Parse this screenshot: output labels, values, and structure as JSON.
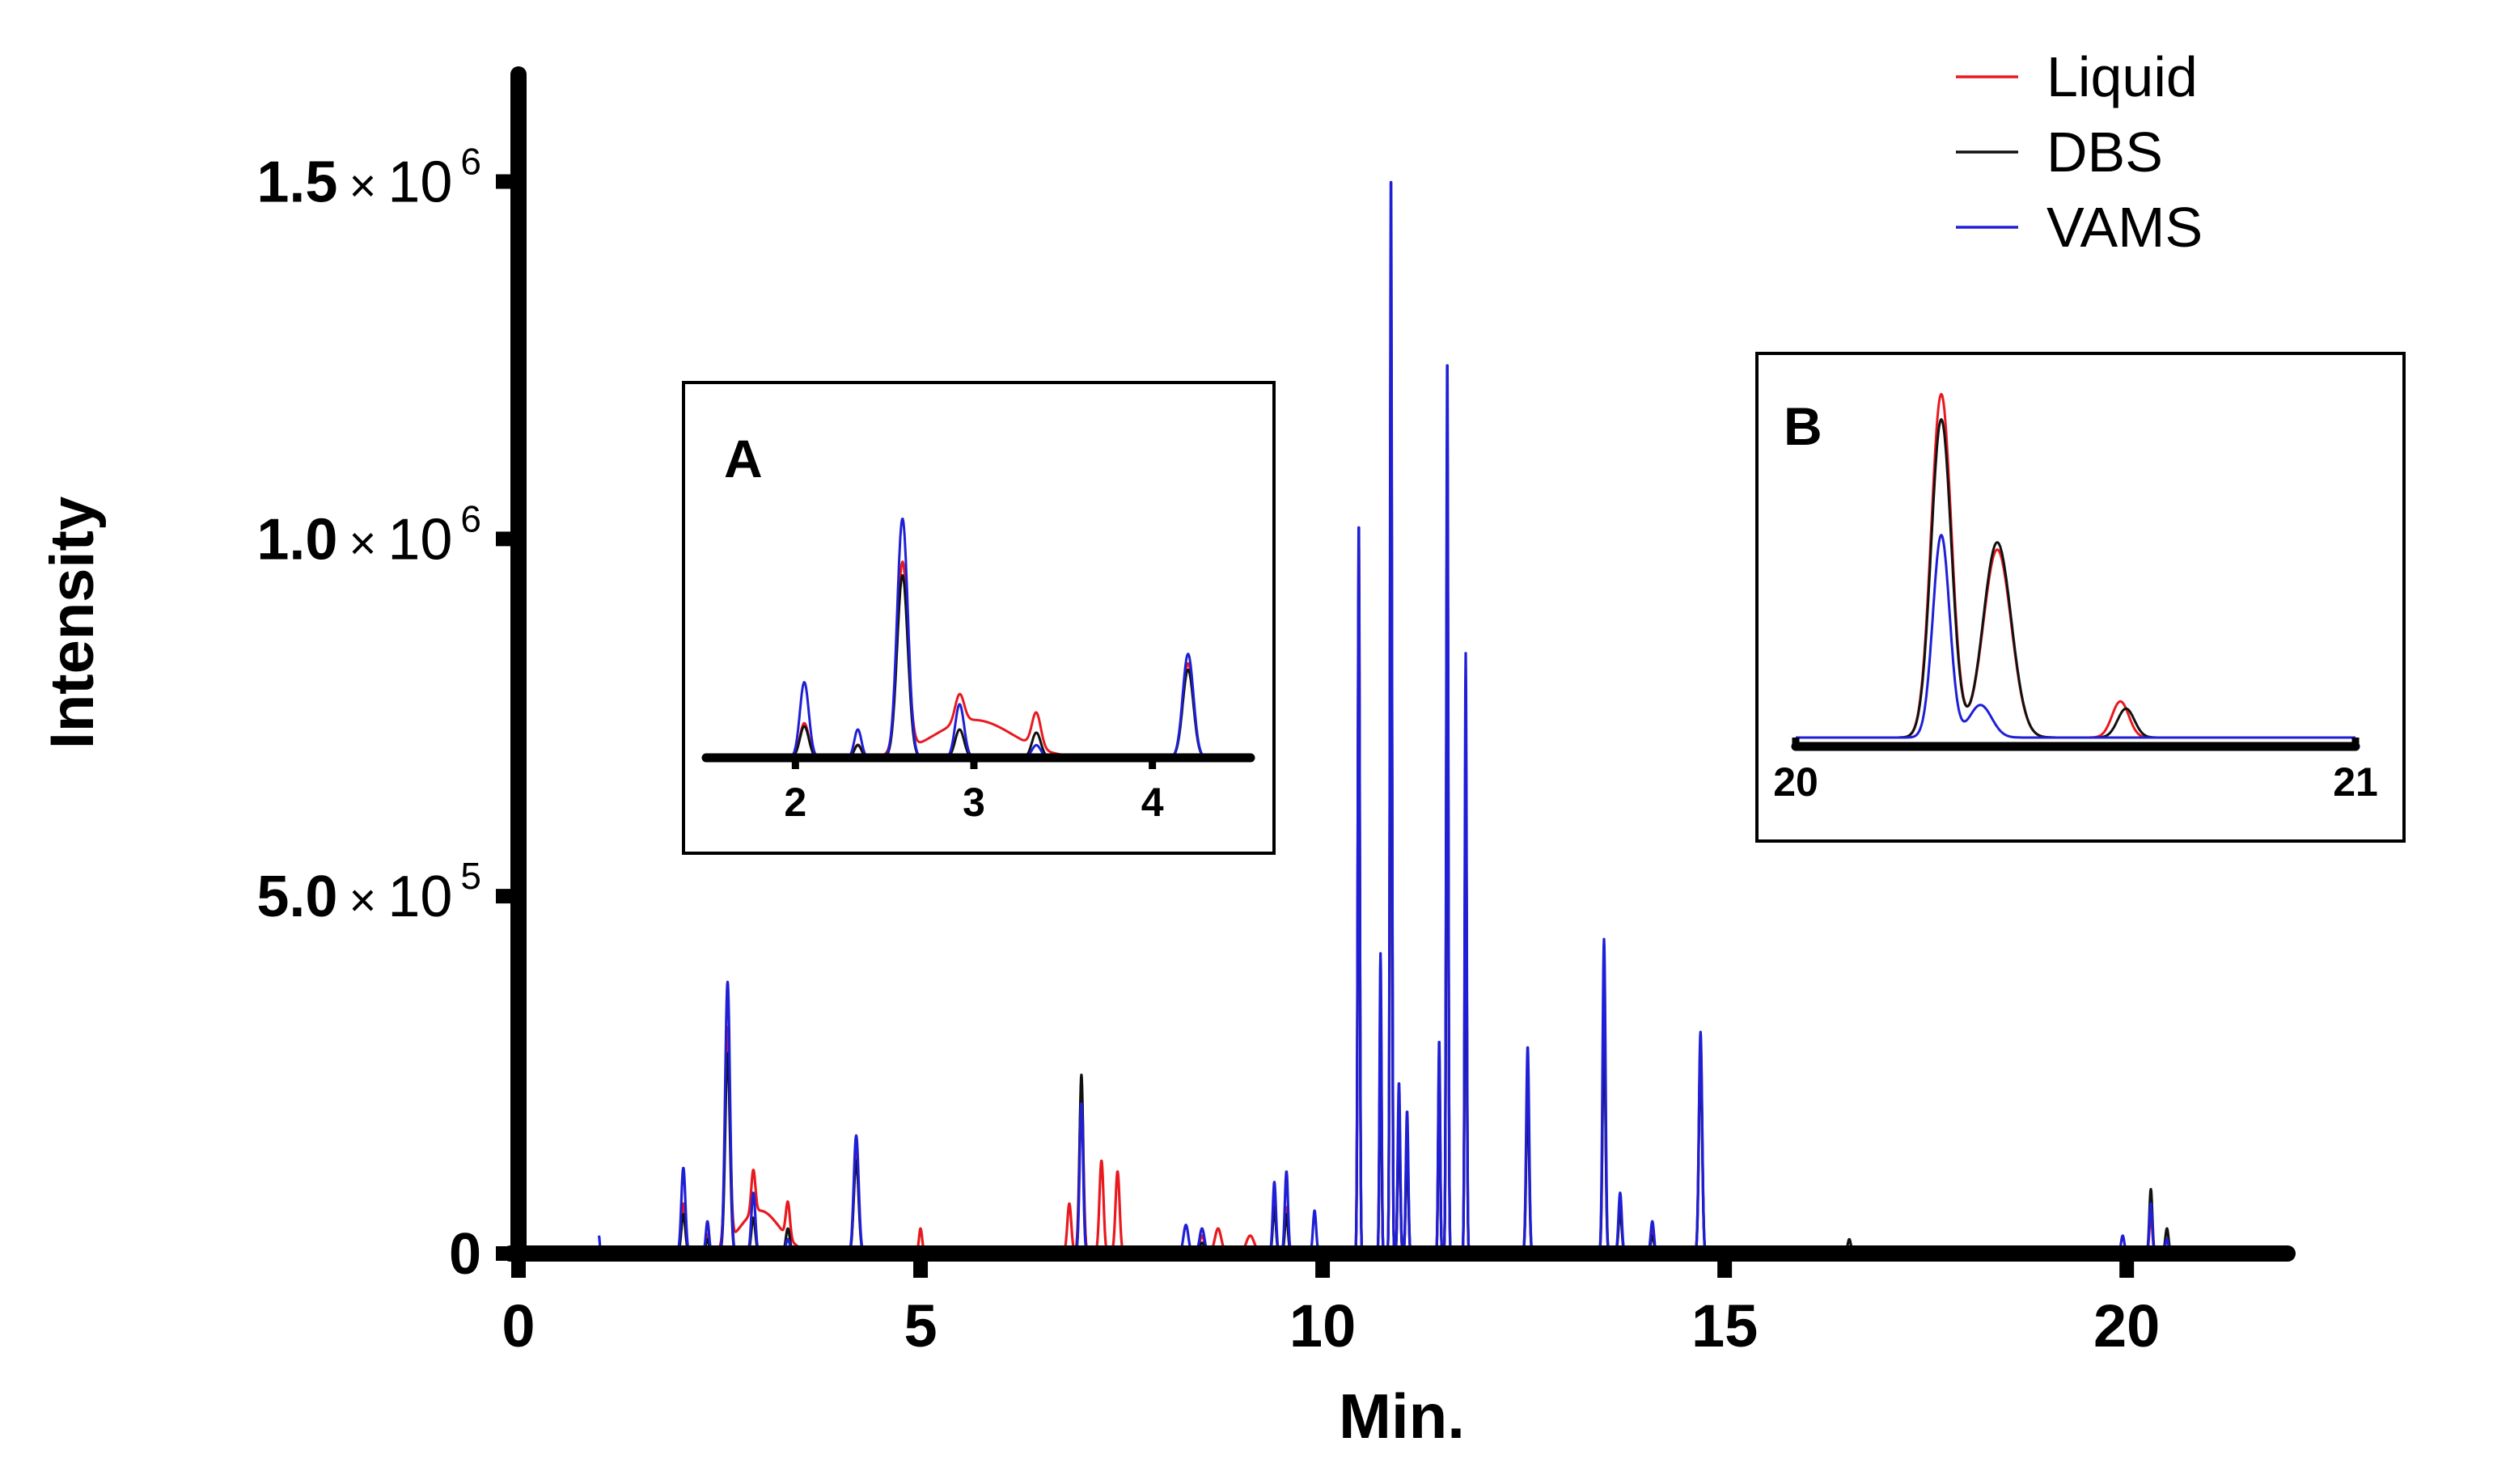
{
  "chart_data": {
    "type": "line",
    "xlabel": "Min.",
    "ylabel": "Intensity",
    "xlim": [
      0,
      22
    ],
    "ylim": [
      0,
      1650000
    ],
    "x_ticks": [
      {
        "value": 0,
        "label": "0"
      },
      {
        "value": 5,
        "label": "5"
      },
      {
        "value": 10,
        "label": "10"
      },
      {
        "value": 15,
        "label": "15"
      },
      {
        "value": 20,
        "label": "20"
      }
    ],
    "y_ticks": [
      {
        "value": 0,
        "mantissa": "0",
        "times": "",
        "base": "",
        "exp": ""
      },
      {
        "value": 500000,
        "mantissa": "5.0",
        "times": "×",
        "base": "10",
        "exp": "5"
      },
      {
        "value": 1000000,
        "mantissa": "1.0",
        "times": "×",
        "base": "10",
        "exp": "6"
      },
      {
        "value": 1500000,
        "mantissa": "1.5",
        "times": "×",
        "base": "10",
        "exp": "6"
      }
    ],
    "legend": {
      "position": "top-right",
      "entries": [
        {
          "name": "Liquid",
          "color": "#e8191f"
        },
        {
          "name": "DBS",
          "color": "#111111"
        },
        {
          "name": "VAMS",
          "color": "#1f1fd6"
        }
      ]
    },
    "series": [
      {
        "name": "Liquid",
        "color": "#e8191f",
        "baseline_start": 1.0,
        "baseline_end": 20.7,
        "peaks": [
          [
            2.05,
            70000,
            0.025
          ],
          [
            2.35,
            25000,
            0.02
          ],
          [
            2.6,
            300000,
            0.03
          ],
          [
            2.92,
            60000,
            0.025
          ],
          [
            3.0,
            60000,
            0.25
          ],
          [
            3.35,
            50000,
            0.025
          ],
          [
            4.2,
            140000,
            0.03
          ],
          [
            5.0,
            35000,
            0.02
          ],
          [
            6.85,
            70000,
            0.025
          ],
          [
            7.0,
            230000,
            0.025
          ],
          [
            7.25,
            130000,
            0.025
          ],
          [
            7.45,
            115000,
            0.025
          ],
          [
            8.5,
            25000,
            0.03
          ],
          [
            8.7,
            35000,
            0.04
          ],
          [
            9.1,
            25000,
            0.05
          ],
          [
            9.4,
            75000,
            0.02
          ],
          [
            9.55,
            65000,
            0.02
          ],
          [
            10.45,
            1000000,
            0.012
          ],
          [
            10.72,
            370000,
            0.012
          ],
          [
            10.85,
            1380000,
            0.012
          ],
          [
            10.95,
            210000,
            0.015
          ],
          [
            11.05,
            180000,
            0.015
          ],
          [
            11.45,
            280000,
            0.012
          ],
          [
            11.55,
            1140000,
            0.012
          ],
          [
            11.78,
            730000,
            0.012
          ],
          [
            12.55,
            250000,
            0.018
          ],
          [
            13.5,
            350000,
            0.018
          ],
          [
            13.7,
            65000,
            0.02
          ],
          [
            14.1,
            30000,
            0.02
          ],
          [
            14.7,
            300000,
            0.02
          ],
          [
            20.3,
            55000,
            0.018
          ],
          [
            20.5,
            20000,
            0.02
          ]
        ]
      },
      {
        "name": "DBS",
        "color": "#111111",
        "baseline_start": 1.0,
        "baseline_end": 20.7,
        "peaks": [
          [
            2.05,
            55000,
            0.025
          ],
          [
            2.35,
            20000,
            0.02
          ],
          [
            2.6,
            280000,
            0.03
          ],
          [
            2.92,
            50000,
            0.025
          ],
          [
            3.35,
            35000,
            0.025
          ],
          [
            4.2,
            130000,
            0.03
          ],
          [
            7.0,
            250000,
            0.022
          ],
          [
            8.5,
            15000,
            0.03
          ],
          [
            9.4,
            65000,
            0.02
          ],
          [
            9.55,
            55000,
            0.02
          ],
          [
            10.45,
            950000,
            0.012
          ],
          [
            10.72,
            340000,
            0.012
          ],
          [
            10.85,
            1350000,
            0.012
          ],
          [
            10.95,
            200000,
            0.015
          ],
          [
            11.05,
            160000,
            0.015
          ],
          [
            11.45,
            260000,
            0.012
          ],
          [
            11.55,
            1100000,
            0.012
          ],
          [
            11.78,
            700000,
            0.012
          ],
          [
            12.55,
            230000,
            0.018
          ],
          [
            13.5,
            330000,
            0.018
          ],
          [
            13.7,
            60000,
            0.02
          ],
          [
            14.1,
            25000,
            0.02
          ],
          [
            14.7,
            280000,
            0.02
          ],
          [
            15.05,
            8000,
            0.02
          ],
          [
            16.55,
            20000,
            0.02
          ],
          [
            20.3,
            90000,
            0.018
          ],
          [
            20.5,
            35000,
            0.02
          ]
        ]
      },
      {
        "name": "VAMS",
        "color": "#1f1fd6",
        "baseline_start": 1.0,
        "baseline_end": 20.7,
        "peaks": [
          [
            1.0,
            25000,
            0.01
          ],
          [
            2.05,
            120000,
            0.025
          ],
          [
            2.35,
            45000,
            0.02
          ],
          [
            2.6,
            380000,
            0.03
          ],
          [
            2.92,
            85000,
            0.025
          ],
          [
            3.35,
            20000,
            0.025
          ],
          [
            4.2,
            165000,
            0.03
          ],
          [
            7.0,
            210000,
            0.022
          ],
          [
            8.3,
            40000,
            0.03
          ],
          [
            8.5,
            35000,
            0.03
          ],
          [
            9.4,
            100000,
            0.02
          ],
          [
            9.55,
            115000,
            0.02
          ],
          [
            9.9,
            60000,
            0.02
          ],
          [
            10.45,
            1030000,
            0.012
          ],
          [
            10.72,
            420000,
            0.012
          ],
          [
            10.85,
            1520000,
            0.012
          ],
          [
            10.95,
            240000,
            0.015
          ],
          [
            11.05,
            200000,
            0.015
          ],
          [
            11.45,
            300000,
            0.012
          ],
          [
            11.55,
            1260000,
            0.012
          ],
          [
            11.78,
            840000,
            0.012
          ],
          [
            12.55,
            290000,
            0.018
          ],
          [
            13.5,
            440000,
            0.018
          ],
          [
            13.7,
            85000,
            0.02
          ],
          [
            14.1,
            45000,
            0.02
          ],
          [
            14.7,
            310000,
            0.02
          ],
          [
            19.95,
            25000,
            0.02
          ],
          [
            20.3,
            70000,
            0.018
          ],
          [
            20.5,
            20000,
            0.02
          ]
        ]
      }
    ],
    "insets": [
      {
        "label": "A",
        "xlim": [
          1.5,
          4.55
        ],
        "ymax": 420000,
        "x_ticks": [
          {
            "value": 2,
            "label": "2"
          },
          {
            "value": 3,
            "label": "3"
          },
          {
            "value": 4,
            "label": "4"
          }
        ],
        "series": [
          {
            "name": "Liquid",
            "color": "#e8191f",
            "peaks": [
              [
                2.05,
                55000,
                0.025
              ],
              [
                2.35,
                20000,
                0.02
              ],
              [
                2.6,
                300000,
                0.03
              ],
              [
                2.92,
                45000,
                0.025
              ],
              [
                3.0,
                60000,
                0.22
              ],
              [
                3.35,
                55000,
                0.025
              ],
              [
                4.2,
                150000,
                0.03
              ]
            ]
          },
          {
            "name": "DBS",
            "color": "#111111",
            "peaks": [
              [
                2.05,
                50000,
                0.025
              ],
              [
                2.35,
                20000,
                0.02
              ],
              [
                2.6,
                290000,
                0.03
              ],
              [
                2.92,
                45000,
                0.025
              ],
              [
                3.35,
                40000,
                0.025
              ],
              [
                4.2,
                140000,
                0.03
              ]
            ]
          },
          {
            "name": "VAMS",
            "color": "#1f1fd6",
            "peaks": [
              [
                2.05,
                120000,
                0.025
              ],
              [
                2.35,
                45000,
                0.02
              ],
              [
                2.6,
                380000,
                0.03
              ],
              [
                2.92,
                85000,
                0.025
              ],
              [
                3.35,
                20000,
                0.025
              ],
              [
                4.2,
                165000,
                0.03
              ]
            ]
          }
        ]
      },
      {
        "label": "B",
        "xlim": [
          20.0,
          21.0
        ],
        "ymax": 100000,
        "x_ticks": [
          {
            "value": 20,
            "label": "20"
          },
          {
            "value": 21,
            "label": "21"
          }
        ],
        "series": [
          {
            "name": "Liquid",
            "color": "#e8191f",
            "peaks": [
              [
                20.26,
                95000,
                0.018
              ],
              [
                20.36,
                52000,
                0.025
              ],
              [
                20.58,
                10000,
                0.015
              ]
            ]
          },
          {
            "name": "DBS",
            "color": "#111111",
            "peaks": [
              [
                20.26,
                88000,
                0.018
              ],
              [
                20.36,
                54000,
                0.025
              ],
              [
                20.59,
                8000,
                0.015
              ]
            ]
          },
          {
            "name": "VAMS",
            "color": "#1f1fd6",
            "peaks": [
              [
                20.26,
                56000,
                0.015
              ],
              [
                20.33,
                9000,
                0.02
              ]
            ]
          }
        ]
      }
    ]
  }
}
